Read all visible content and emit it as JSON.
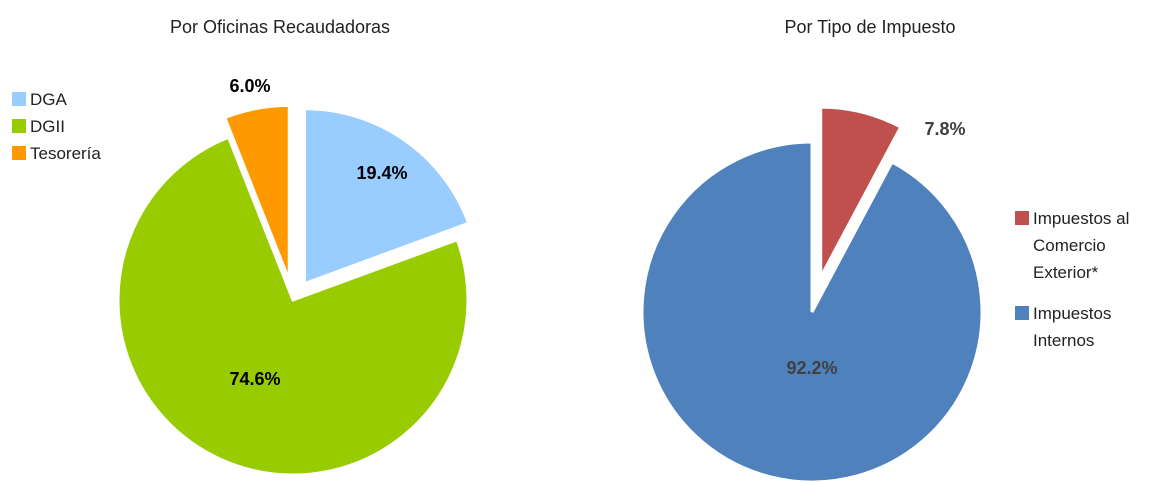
{
  "chart_data": [
    {
      "type": "pie",
      "title": "Por Oficinas Recaudadoras",
      "categories": [
        "DGA",
        "DGII",
        "Tesorería"
      ],
      "values": [
        19.4,
        74.6,
        6.0
      ],
      "value_labels": [
        "19.4%",
        "74.6%",
        "6.0%"
      ],
      "colors": [
        "#99ccff",
        "#99cc00",
        "#ff9900"
      ]
    },
    {
      "type": "pie",
      "title": "Por Tipo de Impuesto",
      "categories": [
        "Impuestos al Comercio Exterior*",
        "Impuestos Internos"
      ],
      "values": [
        7.8,
        92.2
      ],
      "value_labels": [
        "7.8%",
        "92.2%"
      ],
      "colors": [
        "#c0504d",
        "#4f81bd"
      ]
    }
  ]
}
